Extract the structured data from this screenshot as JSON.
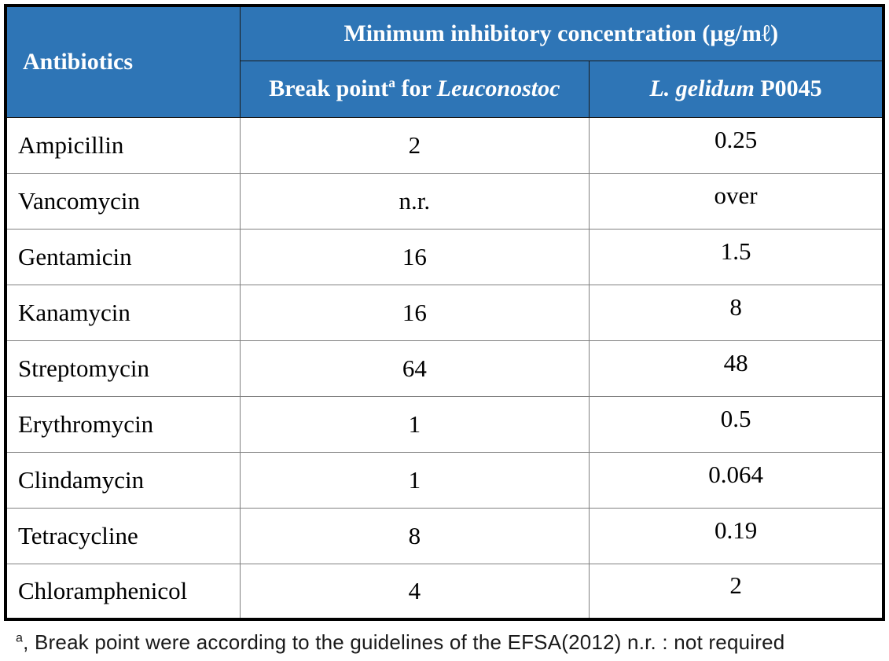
{
  "table": {
    "header": {
      "antibiotics": "Antibiotics",
      "mic_title": "Minimum inhibitory concentration (µg/mℓ)",
      "break_point": {
        "text": "Break point",
        "sup": "a",
        "mid": " for ",
        "species": "Leuconostoc"
      },
      "strain": {
        "species": "L. gelidum",
        "rest": " P0045"
      }
    },
    "rows": [
      {
        "antibiotic": "Ampicillin",
        "break_point": "2",
        "mic": "0.25"
      },
      {
        "antibiotic": "Vancomycin",
        "break_point": "n.r.",
        "mic": "over"
      },
      {
        "antibiotic": "Gentamicin",
        "break_point": "16",
        "mic": "1.5"
      },
      {
        "antibiotic": "Kanamycin",
        "break_point": "16",
        "mic": "8"
      },
      {
        "antibiotic": "Streptomycin",
        "break_point": "64",
        "mic": "48"
      },
      {
        "antibiotic": "Erythromycin",
        "break_point": "1",
        "mic": "0.5"
      },
      {
        "antibiotic": "Clindamycin",
        "break_point": "1",
        "mic": "0.064"
      },
      {
        "antibiotic": "Tetracycline",
        "break_point": "8",
        "mic": "0.19"
      },
      {
        "antibiotic": "Chloramphenicol",
        "break_point": "4",
        "mic": "2"
      }
    ],
    "footnote": {
      "sup": "a",
      "text": ", Break point were according to the guidelines of the EFSA(2012) n.r. : not required"
    }
  },
  "colors": {
    "header_blue": "#2E75B6",
    "header_text": "#FFFFFF",
    "body_text": "#000000",
    "outer_border": "#000000",
    "inner_border": "#808080"
  }
}
